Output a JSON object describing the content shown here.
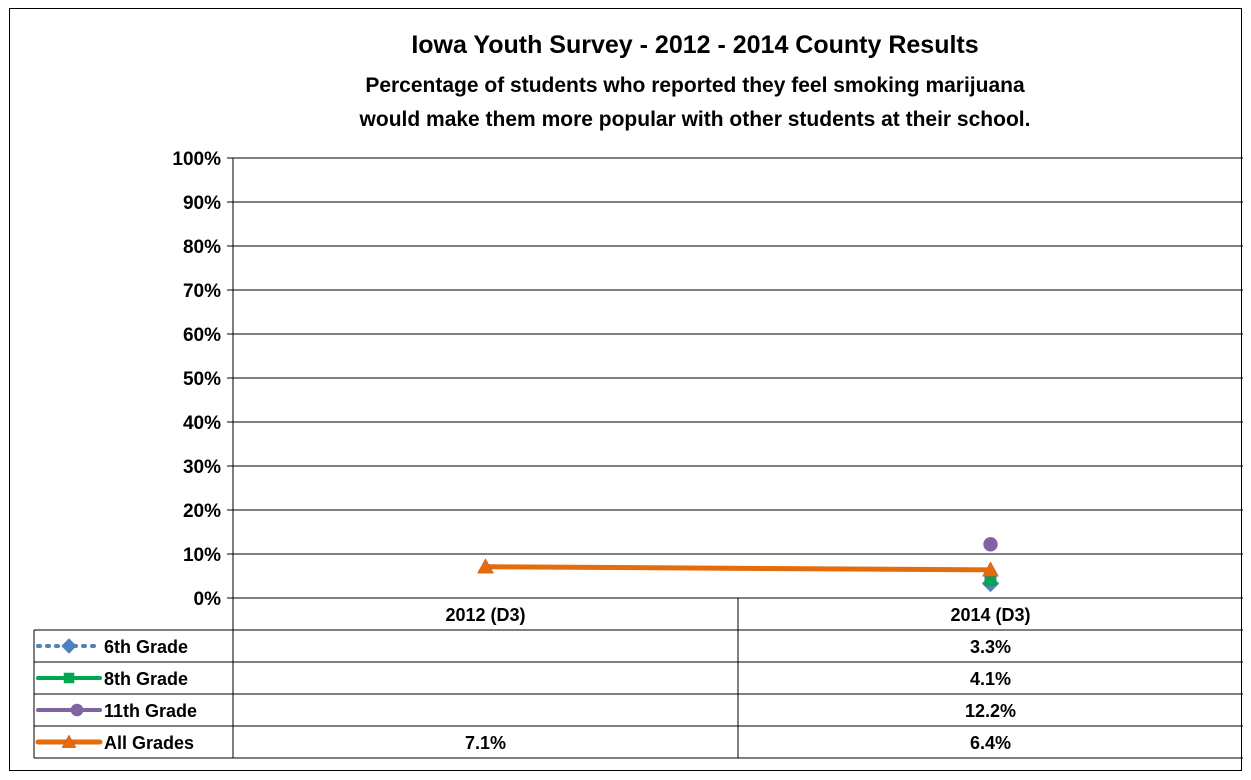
{
  "chart_data": {
    "type": "line",
    "title": "Iowa Youth Survey - 2012 - 2014 County Results",
    "subtitle_lines": [
      "Percentage of students who reported they feel smoking marijuana",
      "would make them more popular with other students at their school."
    ],
    "categories": [
      "2012 (D3)",
      "2014 (D3)"
    ],
    "ylim": [
      0,
      100
    ],
    "yticks": [
      "0%",
      "10%",
      "20%",
      "30%",
      "40%",
      "50%",
      "60%",
      "70%",
      "80%",
      "90%",
      "100%"
    ],
    "grid": true,
    "legend_placement": "data-table",
    "series": [
      {
        "name": "6th Grade",
        "values": [
          null,
          3.3
        ],
        "labels": [
          "",
          "3.3%"
        ],
        "color": "#4F81BD",
        "marker": "diamond",
        "line_style": "dotted"
      },
      {
        "name": "8th Grade",
        "values": [
          null,
          4.1
        ],
        "labels": [
          "",
          "4.1%"
        ],
        "color": "#00A651",
        "marker": "square",
        "line_style": "solid"
      },
      {
        "name": "11th Grade",
        "values": [
          null,
          12.2
        ],
        "labels": [
          "",
          "12.2%"
        ],
        "color": "#8064A2",
        "marker": "circle",
        "line_style": "solid"
      },
      {
        "name": "All Grades",
        "values": [
          7.1,
          6.4
        ],
        "labels": [
          "7.1%",
          "6.4%"
        ],
        "color": "#E46C0A",
        "marker": "triangle",
        "line_style": "solid"
      }
    ]
  }
}
